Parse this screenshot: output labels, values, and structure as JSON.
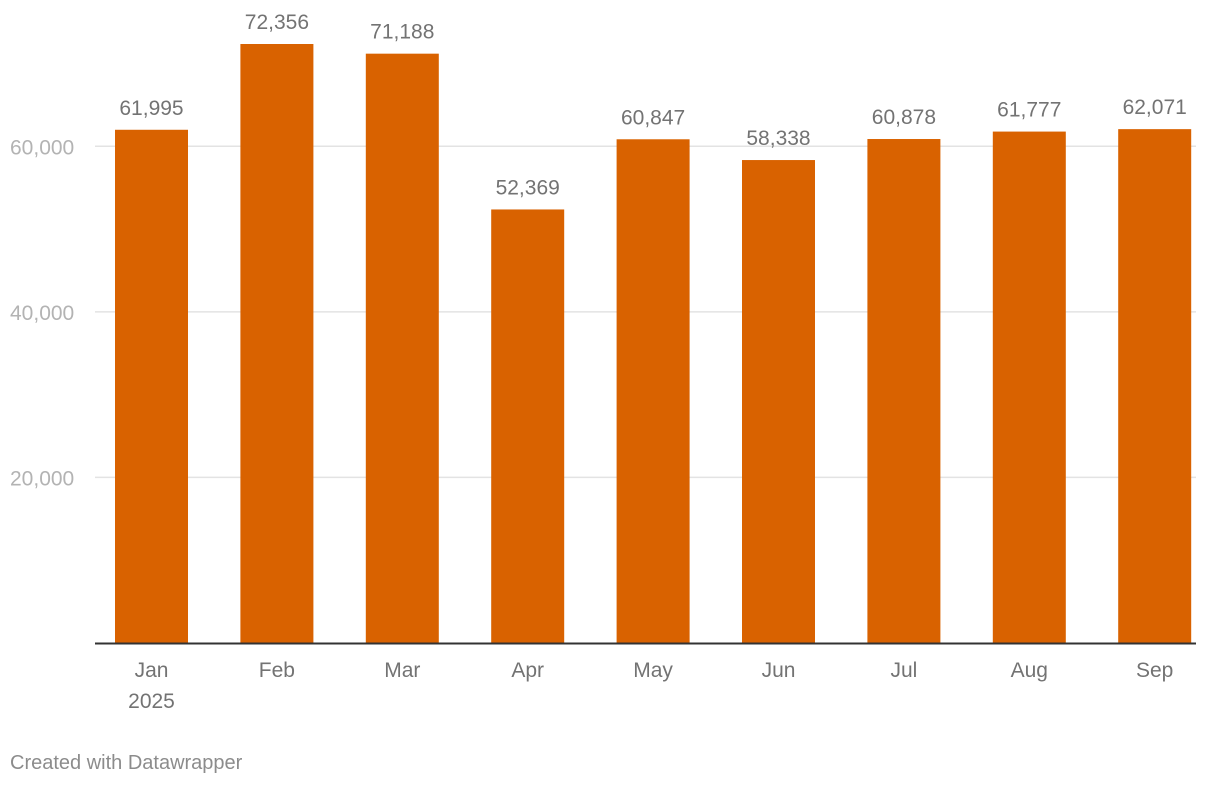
{
  "chart_data": {
    "type": "bar",
    "categories": [
      "Jan",
      "Feb",
      "Mar",
      "Apr",
      "May",
      "Jun",
      "Jul",
      "Aug",
      "Sep"
    ],
    "category_sublabels": [
      "2025",
      "",
      "",
      "",
      "",
      "",
      "",
      "",
      ""
    ],
    "values": [
      61995,
      72356,
      71188,
      52369,
      60847,
      58338,
      60878,
      61777,
      62071
    ],
    "value_labels": [
      "61,995",
      "72,356",
      "71,188",
      "52,369",
      "60,847",
      "58,338",
      "60,878",
      "61,777",
      "62,071"
    ],
    "yticks": [
      20000,
      40000,
      60000
    ],
    "ytick_labels": [
      "20,000",
      "40,000",
      "60,000"
    ],
    "ylim": [
      0,
      72356
    ],
    "grid": true,
    "bar_color": "#d96200"
  },
  "footer": {
    "credit": "Created with Datawrapper"
  }
}
